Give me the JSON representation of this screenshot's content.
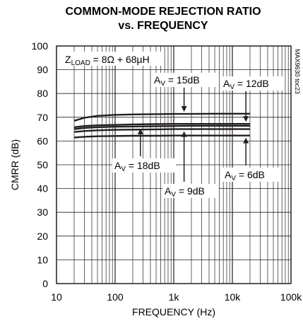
{
  "chart_data": {
    "type": "line",
    "title_line1": "COMMON-MODE REJECTION RATIO",
    "title_line2": "vs. FREQUENCY",
    "xlabel": "FREQUENCY (Hz)",
    "ylabel": "CMRR (dB)",
    "x_scale": "log",
    "xlim": [
      10,
      100000
    ],
    "ylim": [
      0,
      100
    ],
    "x_ticks": [
      "10",
      "100",
      "1k",
      "10k",
      "100k"
    ],
    "y_ticks": [
      "0",
      "10",
      "20",
      "30",
      "40",
      "50",
      "60",
      "70",
      "80",
      "90",
      "100"
    ],
    "grid": true,
    "condition": {
      "main": "Z",
      "sub": "LOAD",
      "rest": " = 8Ω + 68µH"
    },
    "figure_code": "MAX9630 toc23",
    "series": [
      {
        "name": "AV = 15dB",
        "label_main": "A",
        "label_sub": "V",
        "label_rest": " = 15dB",
        "x": [
          20,
          30,
          50,
          100,
          200,
          500,
          1000,
          2000,
          5000,
          10000,
          20000
        ],
        "y": [
          68.5,
          69.8,
          70.6,
          71.0,
          71.2,
          71.3,
          71.4,
          71.4,
          71.5,
          71.5,
          71.5
        ]
      },
      {
        "name": "AV = 12dB",
        "label_main": "A",
        "label_sub": "V",
        "label_rest": " = 12dB",
        "x": [
          20,
          30,
          50,
          100,
          200,
          500,
          1000,
          2000,
          5000,
          10000,
          20000
        ],
        "y": [
          65.8,
          66.3,
          66.6,
          66.8,
          67.0,
          67.1,
          67.2,
          67.2,
          67.2,
          67.2,
          67.2
        ]
      },
      {
        "name": "AV = 18dB",
        "label_main": "A",
        "label_sub": "V",
        "label_rest": " = 18dB",
        "x": [
          20,
          30,
          50,
          100,
          200,
          500,
          1000,
          2000,
          5000,
          10000,
          20000
        ],
        "y": [
          65.0,
          65.5,
          65.8,
          66.0,
          66.1,
          66.2,
          66.3,
          66.4,
          66.4,
          66.4,
          66.4
        ]
      },
      {
        "name": "AV = 9dB",
        "label_main": "A",
        "label_sub": "V",
        "label_rest": " = 9dB",
        "x": [
          20,
          30,
          50,
          100,
          200,
          500,
          1000,
          2000,
          5000,
          10000,
          20000
        ],
        "y": [
          63.8,
          64.2,
          64.5,
          64.7,
          64.8,
          64.9,
          65.0,
          65.0,
          65.0,
          65.0,
          65.0
        ]
      },
      {
        "name": "AV = 6dB",
        "label_main": "A",
        "label_sub": "V",
        "label_rest": " = 6dB",
        "x": [
          20,
          30,
          50,
          100,
          200,
          500,
          1000,
          2000,
          5000,
          10000,
          20000
        ],
        "y": [
          61.5,
          61.8,
          62.0,
          62.1,
          62.2,
          62.2,
          62.3,
          62.3,
          62.3,
          62.3,
          62.3
        ]
      }
    ]
  },
  "colors": {
    "ink": "#231f20",
    "background": "#ffffff"
  }
}
